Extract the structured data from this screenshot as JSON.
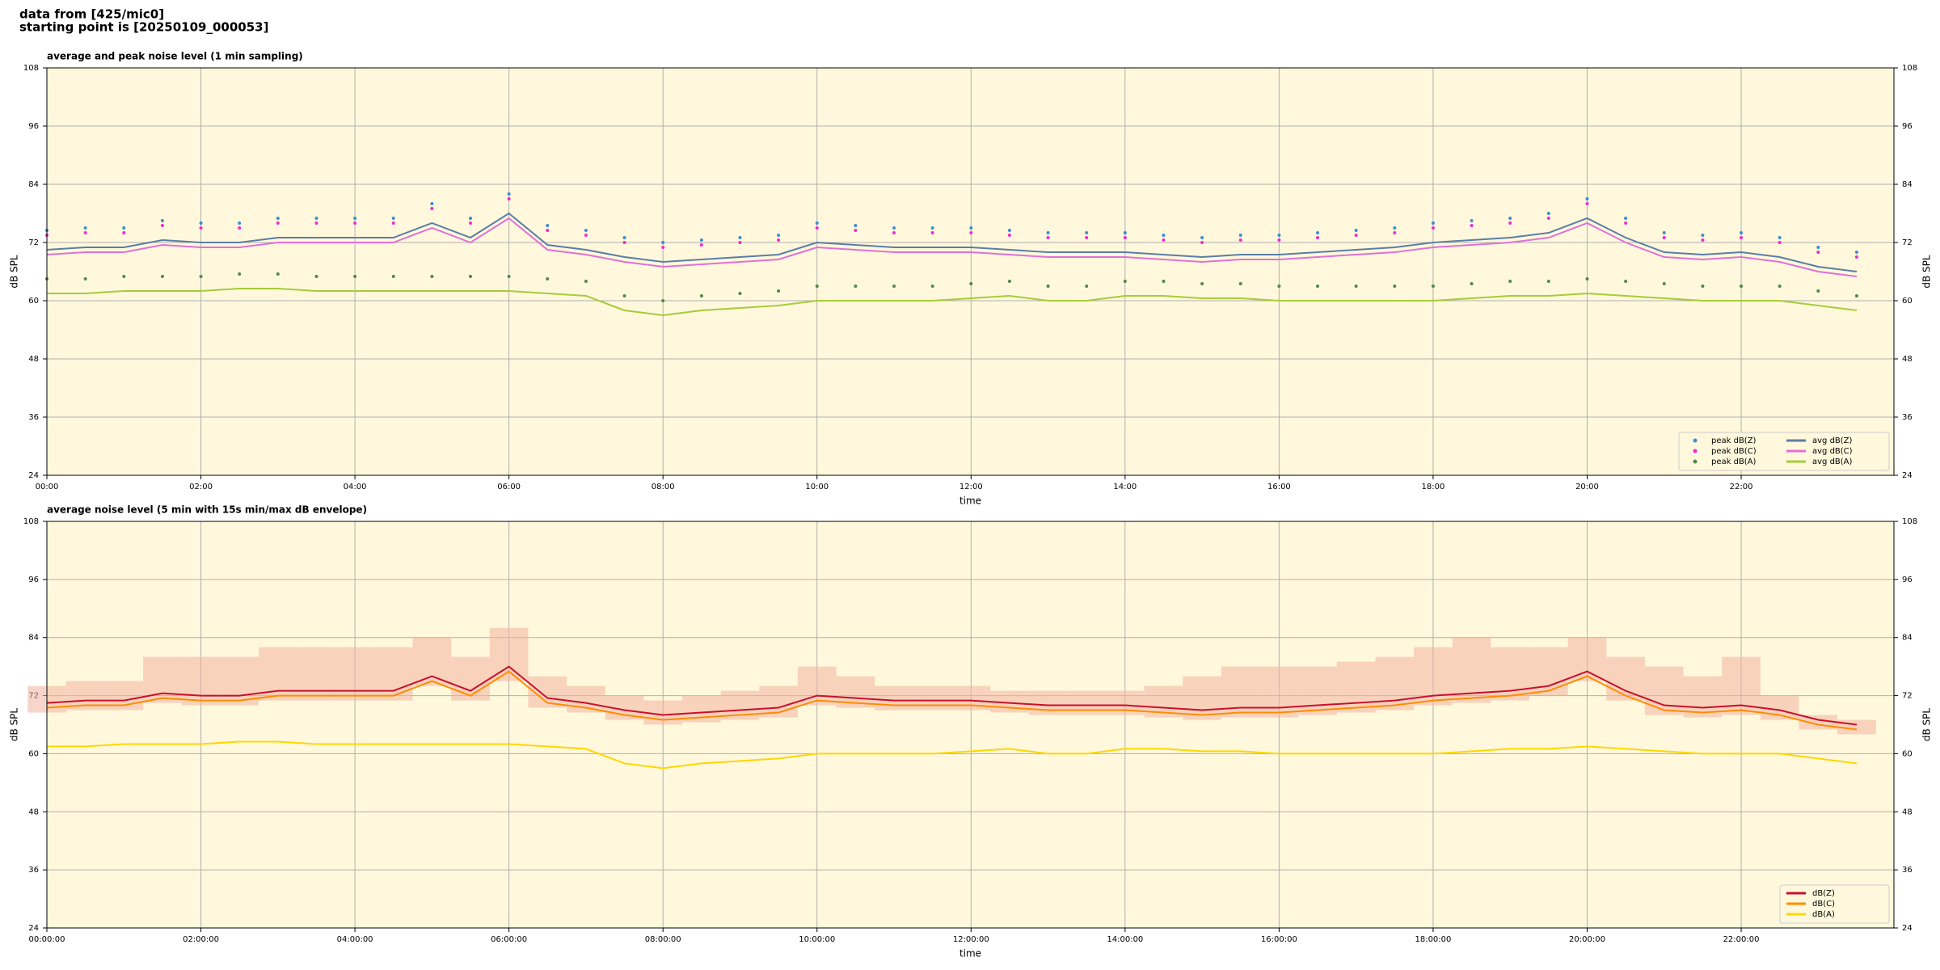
{
  "header": {
    "lines": [
      "data from [425/mic0]",
      "starting point is [20250109_000053]"
    ]
  },
  "chart_data": [
    {
      "type": "line",
      "title": "average and peak noise level (1 min sampling)",
      "xlabel": "time",
      "ylabel": "dB SPL",
      "x": [
        "00:00",
        "00:30",
        "01:00",
        "01:30",
        "02:00",
        "02:30",
        "03:00",
        "03:30",
        "04:00",
        "04:30",
        "05:00",
        "05:30",
        "06:00",
        "06:30",
        "07:00",
        "07:30",
        "08:00",
        "08:30",
        "09:00",
        "09:30",
        "10:00",
        "10:30",
        "11:00",
        "11:30",
        "12:00",
        "12:30",
        "13:00",
        "13:30",
        "14:00",
        "14:30",
        "15:00",
        "15:30",
        "16:00",
        "16:30",
        "17:00",
        "17:30",
        "18:00",
        "18:30",
        "19:00",
        "19:30",
        "20:00",
        "20:30",
        "21:00",
        "21:30",
        "22:00",
        "22:30",
        "23:00",
        "23:30"
      ],
      "xlim": [
        "00:00",
        "23:59"
      ],
      "xticks": [
        "00:00",
        "02:00",
        "04:00",
        "06:00",
        "08:00",
        "10:00",
        "12:00",
        "14:00",
        "16:00",
        "18:00",
        "20:00",
        "22:00"
      ],
      "ylim": [
        24,
        108
      ],
      "yticks": [
        24,
        36,
        48,
        60,
        72,
        84,
        96,
        108
      ],
      "grid": true,
      "legend": "lower right",
      "series": [
        {
          "name": "peak dB(Z)",
          "type": "scatter",
          "color": "#3a8fd6",
          "values": [
            74.5,
            75,
            75,
            76.5,
            76,
            76,
            77,
            77,
            77,
            77,
            80,
            77,
            82,
            75.5,
            74.5,
            73,
            72,
            72.5,
            73,
            73.5,
            76,
            75.5,
            75,
            75,
            75,
            74.5,
            74,
            74,
            74,
            73.5,
            73,
            73.5,
            73.5,
            74,
            74.5,
            75,
            76,
            76.5,
            77,
            78,
            81,
            77,
            74,
            73.5,
            74,
            73,
            71,
            70
          ]
        },
        {
          "name": "peak dB(C)",
          "type": "scatter",
          "color": "#f02cd0",
          "values": [
            73.5,
            74,
            74,
            75.5,
            75,
            75,
            76,
            76,
            76,
            76,
            79,
            76,
            81,
            74.5,
            73.5,
            72,
            71,
            71.5,
            72,
            72.5,
            75,
            74.5,
            74,
            74,
            74,
            73.5,
            73,
            73,
            73,
            72.5,
            72,
            72.5,
            72.5,
            73,
            73.5,
            74,
            75,
            75.5,
            76,
            77,
            80,
            76,
            73,
            72.5,
            73,
            72,
            70,
            69
          ]
        },
        {
          "name": "peak dB(A)",
          "type": "scatter",
          "color": "#4f8a4a",
          "values": [
            64.5,
            64.5,
            65,
            65,
            65,
            65.5,
            65.5,
            65,
            65,
            65,
            65,
            65,
            65,
            64.5,
            64,
            61,
            60,
            61,
            61.5,
            62,
            63,
            63,
            63,
            63,
            63.5,
            64,
            63,
            63,
            64,
            64,
            63.5,
            63.5,
            63,
            63,
            63,
            63,
            63,
            63.5,
            64,
            64,
            64.5,
            64,
            63.5,
            63,
            63,
            63,
            62,
            61
          ]
        },
        {
          "name": "avg dB(Z)",
          "type": "line",
          "color": "#5a7ea6",
          "values": [
            70.5,
            71,
            71,
            72.5,
            72,
            72,
            73,
            73,
            73,
            73,
            76,
            73,
            78,
            71.5,
            70.5,
            69,
            68,
            68.5,
            69,
            69.5,
            72,
            71.5,
            71,
            71,
            71,
            70.5,
            70,
            70,
            70,
            69.5,
            69,
            69.5,
            69.5,
            70,
            70.5,
            71,
            72,
            72.5,
            73,
            74,
            77,
            73,
            70,
            69.5,
            70,
            69,
            67,
            66
          ]
        },
        {
          "name": "avg dB(C)",
          "type": "line",
          "color": "#e070d8",
          "values": [
            69.5,
            70,
            70,
            71.5,
            71,
            71,
            72,
            72,
            72,
            72,
            75,
            72,
            77,
            70.5,
            69.5,
            68,
            67,
            67.5,
            68,
            68.5,
            71,
            70.5,
            70,
            70,
            70,
            69.5,
            69,
            69,
            69,
            68.5,
            68,
            68.5,
            68.5,
            69,
            69.5,
            70,
            71,
            71.5,
            72,
            73,
            76,
            72,
            69,
            68.5,
            69,
            68,
            66,
            65
          ]
        },
        {
          "name": "avg dB(A)",
          "type": "line",
          "color": "#a6cc3a",
          "values": [
            61.5,
            61.5,
            62,
            62,
            62,
            62.5,
            62.5,
            62,
            62,
            62,
            62,
            62,
            62,
            61.5,
            61,
            58,
            57,
            58,
            58.5,
            59,
            60,
            60,
            60,
            60,
            60.5,
            61,
            60,
            60,
            61,
            61,
            60.5,
            60.5,
            60,
            60,
            60,
            60,
            60,
            60.5,
            61,
            61,
            61.5,
            61,
            60.5,
            60,
            60,
            60,
            59,
            58
          ]
        }
      ]
    },
    {
      "type": "line",
      "title": "average noise level (5 min with 15s min/max dB envelope)",
      "xlabel": "time",
      "ylabel": "dB SPL",
      "x": [
        "00:00:00",
        "00:30:00",
        "01:00:00",
        "01:30:00",
        "02:00:00",
        "02:30:00",
        "03:00:00",
        "03:30:00",
        "04:00:00",
        "04:30:00",
        "05:00:00",
        "05:30:00",
        "06:00:00",
        "06:30:00",
        "07:00:00",
        "07:30:00",
        "08:00:00",
        "08:30:00",
        "09:00:00",
        "09:30:00",
        "10:00:00",
        "10:30:00",
        "11:00:00",
        "11:30:00",
        "12:00:00",
        "12:30:00",
        "13:00:00",
        "13:30:00",
        "14:00:00",
        "14:30:00",
        "15:00:00",
        "15:30:00",
        "16:00:00",
        "16:30:00",
        "17:00:00",
        "17:30:00",
        "18:00:00",
        "18:30:00",
        "19:00:00",
        "19:30:00",
        "20:00:00",
        "20:30:00",
        "21:00:00",
        "21:30:00",
        "22:00:00",
        "22:30:00",
        "23:00:00",
        "23:30:00"
      ],
      "xlim": [
        "00:00:00",
        "23:59:00"
      ],
      "xticks": [
        "00:00:00",
        "02:00:00",
        "04:00:00",
        "06:00:00",
        "08:00:00",
        "10:00:00",
        "12:00:00",
        "14:00:00",
        "16:00:00",
        "18:00:00",
        "20:00:00",
        "22:00:00"
      ],
      "ylim": [
        24,
        108
      ],
      "yticks": [
        24,
        36,
        48,
        60,
        72,
        84,
        96,
        108
      ],
      "grid": true,
      "legend": "lower right",
      "envelope": {
        "color": "#f2b3a0",
        "upper": [
          74,
          75,
          75,
          80,
          80,
          80,
          82,
          82,
          82,
          82,
          84,
          80,
          86,
          76,
          74,
          72,
          71,
          72,
          73,
          74,
          78,
          76,
          74,
          74,
          74,
          73,
          73,
          73,
          73,
          74,
          76,
          78,
          78,
          78,
          79,
          80,
          82,
          84,
          82,
          82,
          84,
          80,
          78,
          76,
          80,
          72,
          68,
          67
        ],
        "lower": [
          68.5,
          69,
          69,
          70.5,
          70,
          70,
          71,
          71,
          71,
          71,
          74,
          71,
          75,
          69.5,
          68.5,
          67,
          66,
          66.5,
          67,
          67.5,
          70,
          69.5,
          69,
          69,
          69,
          68.5,
          68,
          68,
          68,
          67.5,
          67,
          67.5,
          67.5,
          68,
          68.5,
          69,
          70,
          70.5,
          71,
          72,
          75,
          71,
          68,
          67.5,
          68,
          67,
          65,
          64
        ]
      },
      "series": [
        {
          "name": "dB(Z)",
          "type": "line",
          "color": "#c8102e",
          "values": [
            70.5,
            71,
            71,
            72.5,
            72,
            72,
            73,
            73,
            73,
            73,
            76,
            73,
            78,
            71.5,
            70.5,
            69,
            68,
            68.5,
            69,
            69.5,
            72,
            71.5,
            71,
            71,
            71,
            70.5,
            70,
            70,
            70,
            69.5,
            69,
            69.5,
            69.5,
            70,
            70.5,
            71,
            72,
            72.5,
            73,
            74,
            77,
            73,
            70,
            69.5,
            70,
            69,
            67,
            66
          ]
        },
        {
          "name": "dB(C)",
          "type": "line",
          "color": "#ff8c00",
          "values": [
            69.5,
            70,
            70,
            71.5,
            71,
            71,
            72,
            72,
            72,
            72,
            75,
            72,
            77,
            70.5,
            69.5,
            68,
            67,
            67.5,
            68,
            68.5,
            71,
            70.5,
            70,
            70,
            70,
            69.5,
            69,
            69,
            69,
            68.5,
            68,
            68.5,
            68.5,
            69,
            69.5,
            70,
            71,
            71.5,
            72,
            73,
            76,
            72,
            69,
            68.5,
            69,
            68,
            66,
            65
          ]
        },
        {
          "name": "dB(A)",
          "type": "line",
          "color": "#ffd700",
          "values": [
            61.5,
            61.5,
            62,
            62,
            62,
            62.5,
            62.5,
            62,
            62,
            62,
            62,
            62,
            62,
            61.5,
            61,
            58,
            57,
            58,
            58.5,
            59,
            60,
            60,
            60,
            60,
            60.5,
            61,
            60,
            60,
            61,
            61,
            60.5,
            60.5,
            60,
            60,
            60,
            60,
            60,
            60.5,
            61,
            61,
            61.5,
            61,
            60.5,
            60,
            60,
            60,
            59,
            58
          ]
        }
      ]
    }
  ]
}
